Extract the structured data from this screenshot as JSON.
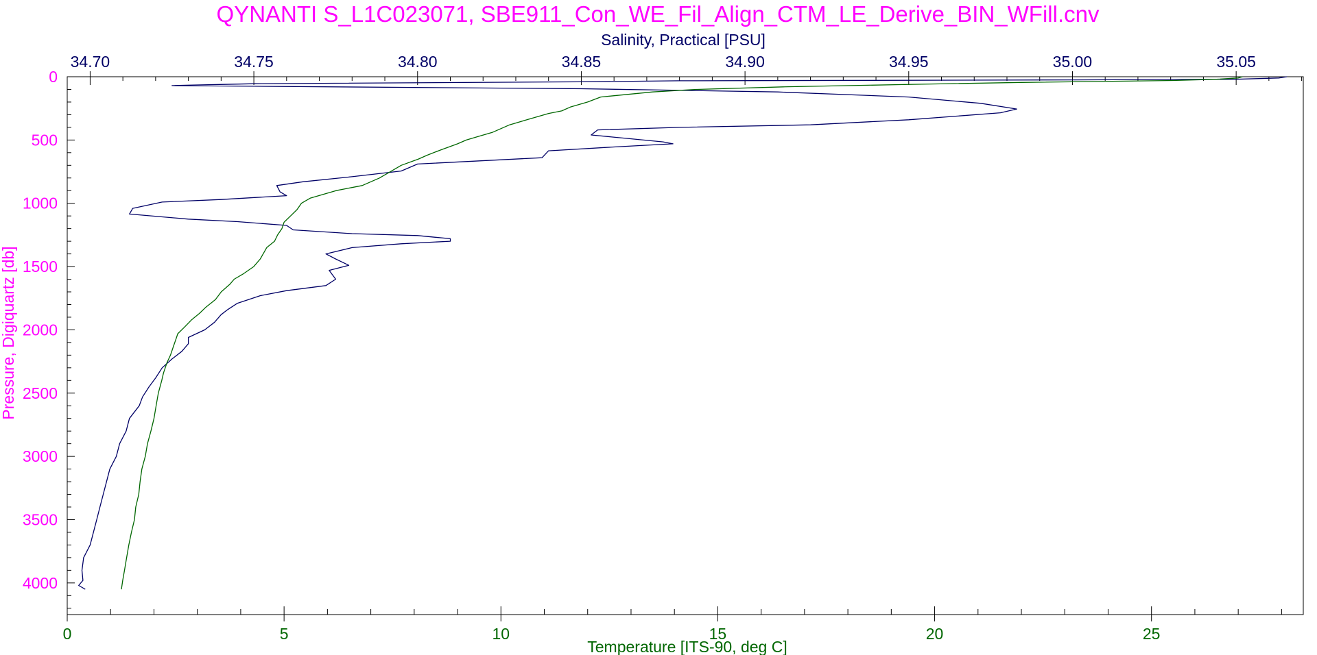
{
  "colors": {
    "pressure": "#ff00ff",
    "salinity": "#000066",
    "temperature": "#006600",
    "frame": "#000000"
  },
  "chart_data": {
    "type": "line",
    "title": "QYNANTI S_L1C023071, SBE911_Con_WE_Fil_Align_CTM_LE_Derive_BIN_WFill.cnv",
    "y_axis": {
      "label": "Pressure, Digiquartz [db]",
      "range": [
        0,
        4250
      ],
      "inverted": true,
      "ticks": [
        0,
        500,
        1000,
        1500,
        2000,
        2500,
        3000,
        3500,
        4000
      ],
      "tick_labels": [
        "0",
        "500",
        "1000",
        "1500",
        "2000",
        "2500",
        "3000",
        "3500",
        "4000"
      ]
    },
    "x_axis_top": {
      "label": "Salinity, Practical [PSU]",
      "range": [
        34.693,
        35.0705
      ],
      "ticks": [
        34.7,
        34.75,
        34.8,
        34.85,
        34.9,
        34.95,
        35.0,
        35.05
      ],
      "tick_labels": [
        "34.70",
        "34.75",
        "34.80",
        "34.85",
        "34.90",
        "34.95",
        "35.00",
        "35.05"
      ]
    },
    "x_axis_bottom": {
      "label": "Temperature [ITS-90, deg C]",
      "range": [
        0,
        28.5
      ],
      "ticks": [
        0,
        5,
        10,
        15,
        20,
        25
      ],
      "tick_labels": [
        "0",
        "5",
        "10",
        "15",
        "20",
        "25"
      ]
    },
    "grid": false,
    "series": [
      {
        "axis": "top",
        "color": "#000066",
        "points": [
          [
            35.0655,
            0
          ],
          [
            35.063,
            10
          ],
          [
            35.05,
            20
          ],
          [
            35.0,
            25
          ],
          [
            34.95,
            28
          ],
          [
            34.88,
            32
          ],
          [
            34.85,
            40
          ],
          [
            34.75,
            55
          ],
          [
            34.725,
            70
          ],
          [
            34.75,
            75
          ],
          [
            34.85,
            95
          ],
          [
            34.91,
            120
          ],
          [
            34.95,
            160
          ],
          [
            34.972,
            210
          ],
          [
            34.983,
            255
          ],
          [
            34.978,
            285
          ],
          [
            34.95,
            340
          ],
          [
            34.92,
            380
          ],
          [
            34.88,
            400
          ],
          [
            34.855,
            420
          ],
          [
            34.853,
            460
          ],
          [
            34.865,
            490
          ],
          [
            34.875,
            515
          ],
          [
            34.878,
            530
          ],
          [
            34.86,
            555
          ],
          [
            34.84,
            585
          ],
          [
            34.838,
            640
          ],
          [
            34.8,
            690
          ],
          [
            34.795,
            745
          ],
          [
            34.78,
            790
          ],
          [
            34.765,
            830
          ],
          [
            34.757,
            860
          ],
          [
            34.758,
            910
          ],
          [
            34.76,
            940
          ],
          [
            34.74,
            970
          ],
          [
            34.722,
            990
          ],
          [
            34.713,
            1040
          ],
          [
            34.712,
            1085
          ],
          [
            34.73,
            1125
          ],
          [
            34.745,
            1145
          ],
          [
            34.76,
            1175
          ],
          [
            34.762,
            1210
          ],
          [
            34.78,
            1240
          ],
          [
            34.8,
            1255
          ],
          [
            34.81,
            1280
          ],
          [
            34.81,
            1300
          ],
          [
            34.795,
            1320
          ],
          [
            34.78,
            1350
          ],
          [
            34.772,
            1400
          ],
          [
            34.775,
            1440
          ],
          [
            34.779,
            1490
          ],
          [
            34.773,
            1530
          ],
          [
            34.775,
            1600
          ],
          [
            34.772,
            1650
          ],
          [
            34.76,
            1690
          ],
          [
            34.752,
            1730
          ],
          [
            34.745,
            1790
          ],
          [
            34.742,
            1840
          ],
          [
            34.74,
            1880
          ],
          [
            34.738,
            1940
          ],
          [
            34.735,
            2000
          ],
          [
            34.73,
            2060
          ],
          [
            34.73,
            2110
          ],
          [
            34.728,
            2170
          ],
          [
            34.725,
            2230
          ],
          [
            34.722,
            2300
          ],
          [
            34.72,
            2380
          ],
          [
            34.718,
            2450
          ],
          [
            34.716,
            2530
          ],
          [
            34.715,
            2600
          ],
          [
            34.712,
            2700
          ],
          [
            34.711,
            2800
          ],
          [
            34.709,
            2900
          ],
          [
            34.708,
            3000
          ],
          [
            34.706,
            3100
          ],
          [
            34.705,
            3200
          ],
          [
            34.704,
            3300
          ],
          [
            34.703,
            3400
          ],
          [
            34.702,
            3500
          ],
          [
            34.701,
            3600
          ],
          [
            34.7,
            3700
          ],
          [
            34.698,
            3800
          ],
          [
            34.6975,
            3900
          ],
          [
            34.6978,
            3980
          ],
          [
            34.6965,
            4020
          ],
          [
            34.6985,
            4050
          ]
        ]
      },
      {
        "axis": "bottom",
        "color": "#006600",
        "points": [
          [
            27.1,
            0
          ],
          [
            27.0,
            10
          ],
          [
            26.5,
            20
          ],
          [
            25.5,
            30
          ],
          [
            22.0,
            45
          ],
          [
            19.5,
            60
          ],
          [
            16.5,
            80
          ],
          [
            14.5,
            100
          ],
          [
            13.5,
            120
          ],
          [
            12.3,
            160
          ],
          [
            12.0,
            200
          ],
          [
            11.6,
            240
          ],
          [
            11.4,
            270
          ],
          [
            11.1,
            290
          ],
          [
            10.6,
            340
          ],
          [
            10.2,
            380
          ],
          [
            9.8,
            440
          ],
          [
            9.5,
            470
          ],
          [
            9.2,
            500
          ],
          [
            9.0,
            530
          ],
          [
            8.6,
            580
          ],
          [
            8.3,
            620
          ],
          [
            8.1,
            650
          ],
          [
            7.7,
            700
          ],
          [
            7.4,
            760
          ],
          [
            7.2,
            800
          ],
          [
            7.0,
            830
          ],
          [
            6.8,
            860
          ],
          [
            6.2,
            900
          ],
          [
            5.9,
            930
          ],
          [
            5.6,
            960
          ],
          [
            5.4,
            1000
          ],
          [
            5.3,
            1050
          ],
          [
            5.15,
            1100
          ],
          [
            5.0,
            1150
          ],
          [
            4.95,
            1200
          ],
          [
            4.85,
            1250
          ],
          [
            4.78,
            1300
          ],
          [
            4.6,
            1350
          ],
          [
            4.55,
            1380
          ],
          [
            4.45,
            1440
          ],
          [
            4.3,
            1500
          ],
          [
            4.05,
            1560
          ],
          [
            3.85,
            1600
          ],
          [
            3.75,
            1640
          ],
          [
            3.55,
            1700
          ],
          [
            3.42,
            1760
          ],
          [
            3.2,
            1820
          ],
          [
            3.05,
            1870
          ],
          [
            2.87,
            1920
          ],
          [
            2.7,
            1980
          ],
          [
            2.55,
            2030
          ],
          [
            2.5,
            2080
          ],
          [
            2.45,
            2130
          ],
          [
            2.38,
            2200
          ],
          [
            2.3,
            2260
          ],
          [
            2.22,
            2340
          ],
          [
            2.18,
            2400
          ],
          [
            2.1,
            2500
          ],
          [
            2.05,
            2600
          ],
          [
            2.0,
            2700
          ],
          [
            1.93,
            2800
          ],
          [
            1.85,
            2900
          ],
          [
            1.8,
            3000
          ],
          [
            1.72,
            3100
          ],
          [
            1.68,
            3200
          ],
          [
            1.65,
            3300
          ],
          [
            1.58,
            3400
          ],
          [
            1.55,
            3500
          ],
          [
            1.48,
            3600
          ],
          [
            1.42,
            3700
          ],
          [
            1.37,
            3800
          ],
          [
            1.32,
            3900
          ],
          [
            1.28,
            3980
          ],
          [
            1.25,
            4050
          ]
        ]
      }
    ]
  }
}
